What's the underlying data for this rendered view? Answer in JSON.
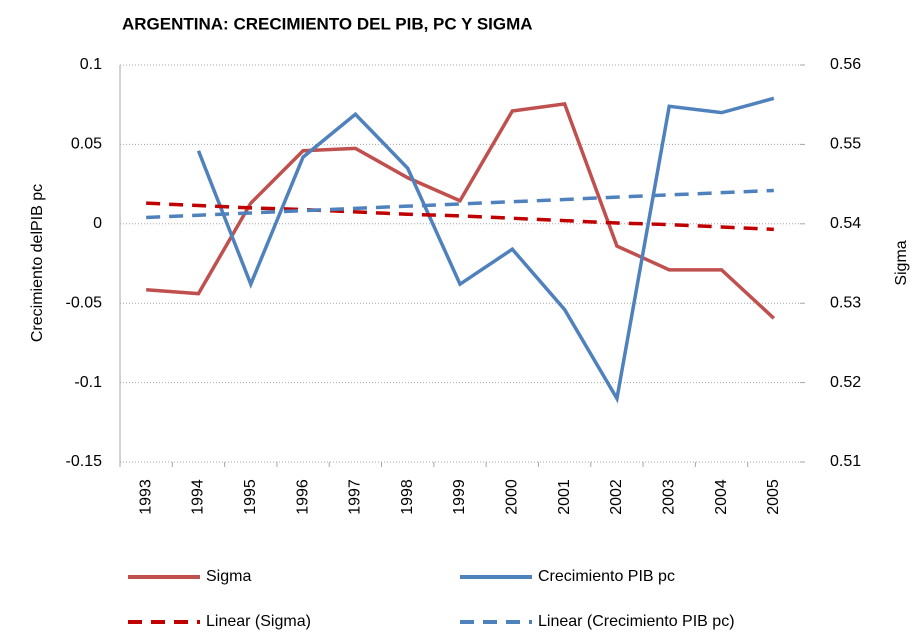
{
  "chart_data": {
    "type": "line",
    "title": "ARGENTINA: CRECIMIENTO DEL PIB, PC Y SIGMA",
    "y_label": "Crecimiento delPIB pc",
    "y2_label": "Sigma",
    "categories": [
      "1993",
      "1994",
      "1995",
      "1996",
      "1997",
      "1998",
      "1999",
      "2000",
      "2001",
      "2002",
      "2003",
      "2004",
      "2005"
    ],
    "series": [
      {
        "name": "Sigma",
        "color": "#c0504d",
        "axis": "y2",
        "style": "solid",
        "values": [
          0.5317,
          0.5312,
          0.5426,
          0.5492,
          0.5495,
          0.5458,
          0.5429,
          0.5542,
          0.5551,
          0.5372,
          0.5342,
          0.5342,
          0.5281
        ]
      },
      {
        "name": "Crecimiento PIB pc",
        "color": "#4f81bd",
        "axis": "y",
        "style": "solid",
        "values": [
          null,
          0.046,
          -0.038,
          0.042,
          0.069,
          0.035,
          -0.038,
          -0.016,
          -0.054,
          -0.11,
          0.074,
          0.07,
          0.079
        ]
      },
      {
        "name": "Linear (Sigma)",
        "color": "#c00000",
        "axis": "y2",
        "style": "dashed",
        "values": [
          0.5426,
          0.5423,
          0.542,
          0.5418,
          0.5415,
          0.5412,
          0.541,
          0.5407,
          0.5404,
          0.5401,
          0.5399,
          0.5396,
          0.5393
        ]
      },
      {
        "name": "Linear (Crecimiento PIB pc)",
        "color": "#4f81bd",
        "axis": "y",
        "style": "dashed",
        "values": [
          0.004,
          0.0054,
          0.0068,
          0.0083,
          0.0097,
          0.0111,
          0.0125,
          0.0139,
          0.0153,
          0.0168,
          0.0182,
          0.0196,
          0.021
        ]
      }
    ],
    "ylim": [
      -0.15,
      0.1
    ],
    "yticks": [
      -0.15,
      -0.1,
      -0.05,
      0,
      0.05,
      0.1
    ],
    "y2lim": [
      0.51,
      0.56
    ],
    "y2ticks": [
      0.51,
      0.52,
      0.53,
      0.54,
      0.55,
      0.56
    ],
    "grid": true,
    "legend": "bottom"
  }
}
